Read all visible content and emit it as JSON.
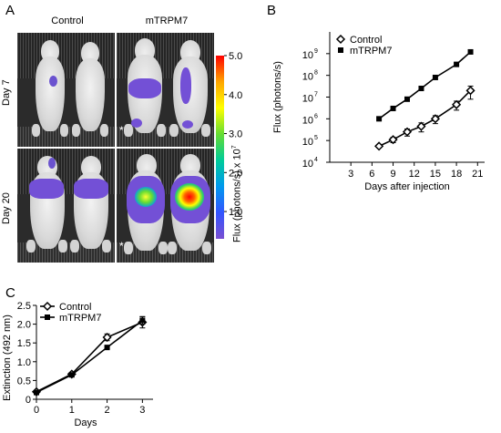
{
  "panel_letters": {
    "a": "A",
    "b": "B",
    "c": "C"
  },
  "panel_a": {
    "col_labels": [
      "Control",
      "mTRPM7"
    ],
    "row_labels": [
      "Day 7",
      "Day 20"
    ],
    "colorbar_title": "Flux (photons/s) x 10",
    "colorbar_exp": "7",
    "colorbar_ticks": [
      "5.0",
      "4.0",
      "3.0",
      "2.0",
      "1.0"
    ],
    "colorbar_colors": [
      "#ff0000",
      "#ffa500",
      "#ffff00",
      "#66dd33",
      "#00cc99",
      "#0099ee",
      "#3355ff",
      "#7a4fd1"
    ],
    "asterisk": "*"
  },
  "chart_data": [
    {
      "type": "line",
      "panel": "B",
      "ylabel": "Flux (photons/s)",
      "xlabel": "Days after injection",
      "xlim": [
        0,
        22
      ],
      "ylog": true,
      "ylim": [
        10000,
        10000000000
      ],
      "xticks": [
        "3",
        "6",
        "9",
        "12",
        "15",
        "18",
        "21"
      ],
      "yticks": [
        "10",
        "10",
        "10",
        "10",
        "10",
        "10"
      ],
      "ytick_exponents": [
        "4",
        "5",
        "6",
        "7",
        "8",
        "9"
      ],
      "legend": "top-left",
      "series": [
        {
          "name": "Control",
          "marker": "diamond-open",
          "x": [
            7,
            9,
            11,
            13,
            15,
            18,
            20
          ],
          "y": [
            55000,
            110000,
            250000,
            450000,
            1000000,
            4500000,
            20000000
          ],
          "err": [
            8000,
            30000,
            90000,
            200000,
            400000,
            2000000,
            12000000
          ]
        },
        {
          "name": "mTRPM7",
          "marker": "square-filled",
          "x": [
            7,
            9,
            11,
            13,
            15,
            18,
            20
          ],
          "y": [
            1000000,
            3000000,
            8000000,
            25000000,
            80000000,
            320000000,
            1200000000
          ],
          "err": [
            0,
            0,
            0,
            0,
            0,
            0,
            0
          ]
        }
      ]
    },
    {
      "type": "line",
      "panel": "C",
      "ylabel": "Extinction (492 nm)",
      "xlabel": "Days",
      "xlim": [
        0,
        3.3
      ],
      "ylim": [
        0,
        2.5
      ],
      "xticks": [
        "0",
        "1",
        "2",
        "3"
      ],
      "yticks": [
        "0",
        "0.5",
        "1.0",
        "1.5",
        "2.0",
        "2.5"
      ],
      "legend": "top-left",
      "series": [
        {
          "name": "Control",
          "marker": "diamond-open",
          "x": [
            0,
            1,
            2,
            3
          ],
          "y": [
            0.2,
            0.67,
            1.65,
            2.05
          ],
          "err": [
            0.03,
            0.03,
            0.09,
            0.15
          ]
        },
        {
          "name": "mTRPM7",
          "marker": "square-filled",
          "x": [
            0,
            1,
            2,
            3
          ],
          "y": [
            0.18,
            0.65,
            1.38,
            2.1
          ],
          "err": [
            0.02,
            0.02,
            0.03,
            0.1
          ]
        }
      ]
    }
  ]
}
